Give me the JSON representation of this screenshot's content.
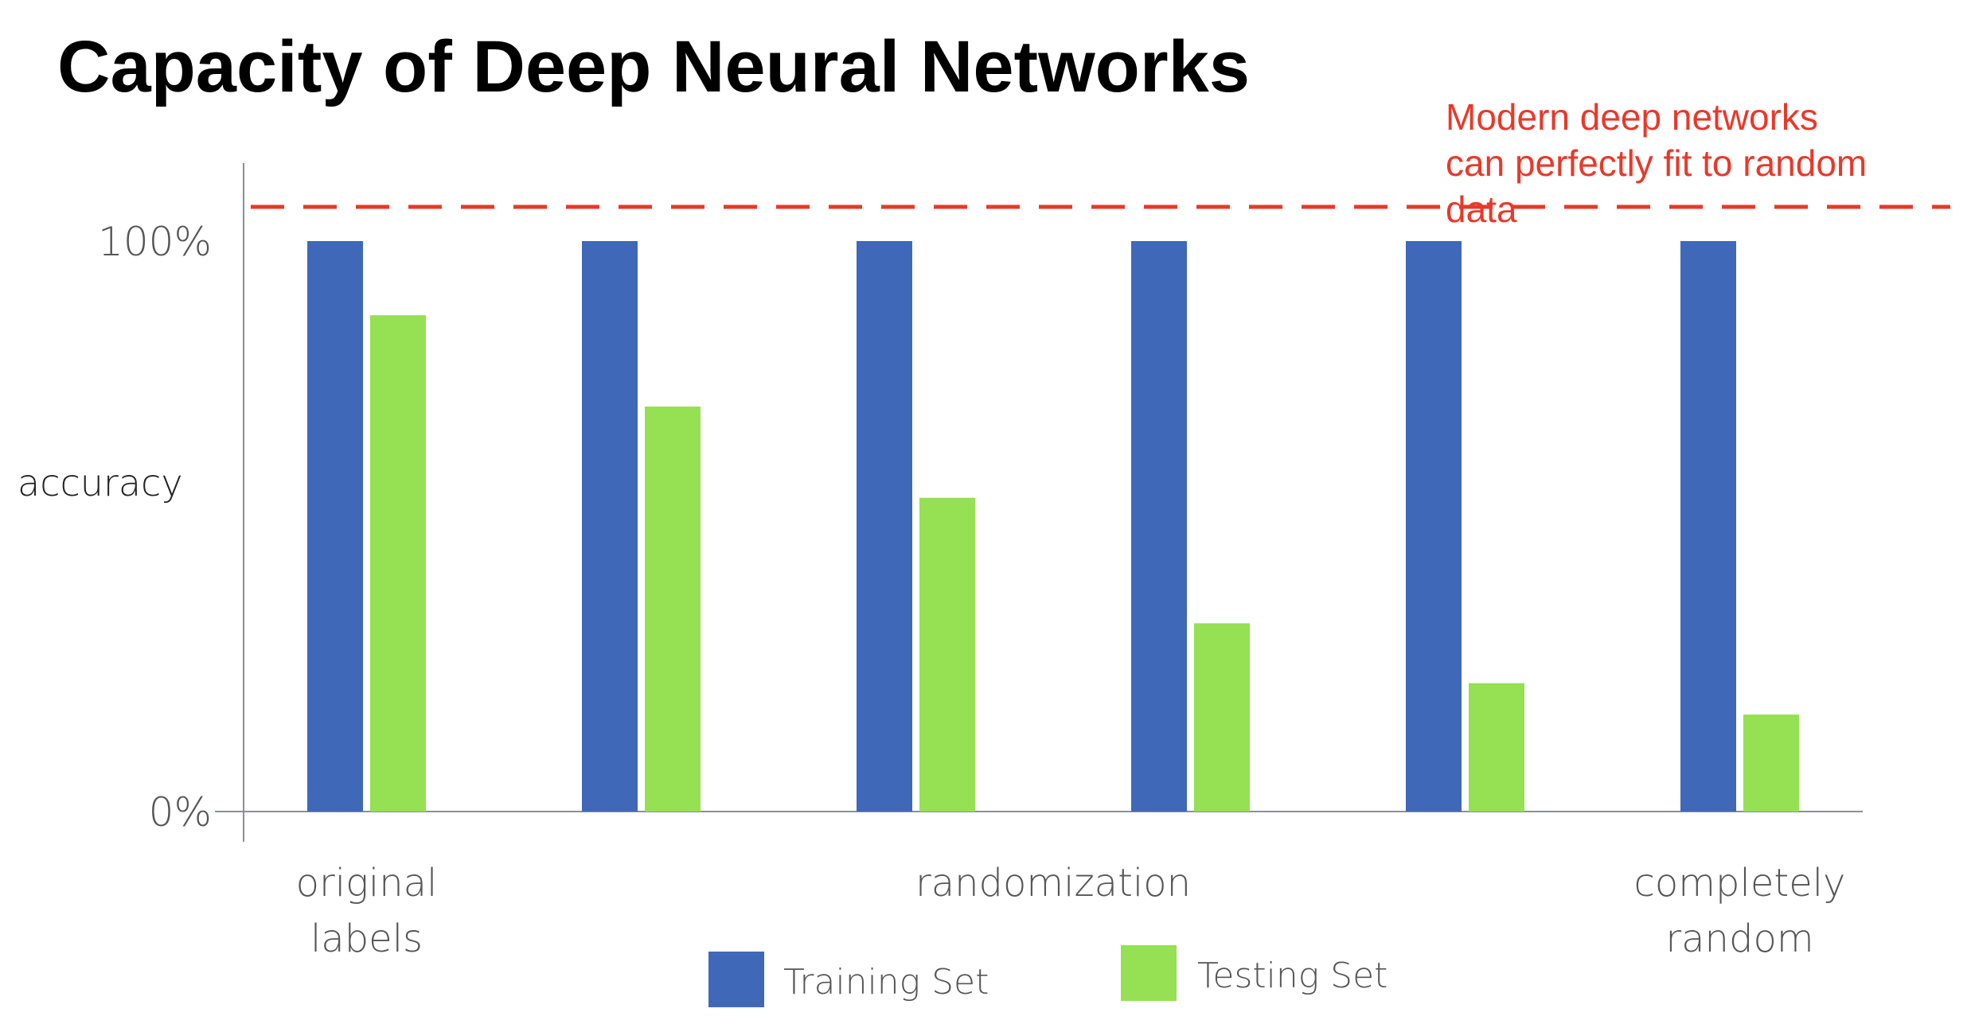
{
  "title": "Capacity of Deep Neural Networks",
  "annotation": {
    "lines": [
      "Modern deep networks",
      "can perfectly fit to random",
      "data"
    ]
  },
  "colors": {
    "training": "#4068b9",
    "testing": "#95e053",
    "reference_line": "#e8392a",
    "axis": "#8a8f99",
    "axis_text": "#555555",
    "ylabel_text": "#222222"
  },
  "chart_data": {
    "type": "bar",
    "title": "Capacity of Deep Neural Networks",
    "ylabel": "accuracy",
    "xlabel": "",
    "ylim": [
      0,
      100
    ],
    "y_ticks": [
      {
        "value": 0,
        "label": "0%"
      },
      {
        "value": 100,
        "label": "100%"
      }
    ],
    "x_labels": [
      {
        "text": [
          "original",
          "labels"
        ],
        "category_index": 0
      },
      {
        "text": [
          "randomization"
        ],
        "category_index": 2.5
      },
      {
        "text": [
          "completely",
          "random"
        ],
        "category_index": 5
      }
    ],
    "categories": [
      "",
      "",
      "",
      "",
      "",
      ""
    ],
    "series": [
      {
        "name": "Training Set",
        "color": "#4068b9",
        "values": [
          100,
          100,
          100,
          100,
          100,
          100
        ]
      },
      {
        "name": "Testing Set",
        "color": "#95e053",
        "values": [
          87,
          71,
          55,
          33,
          22.5,
          17
        ]
      }
    ],
    "reference_line": {
      "value": 106,
      "style": "dashed"
    },
    "legend": {
      "position": "bottom-center"
    },
    "grid": false
  }
}
